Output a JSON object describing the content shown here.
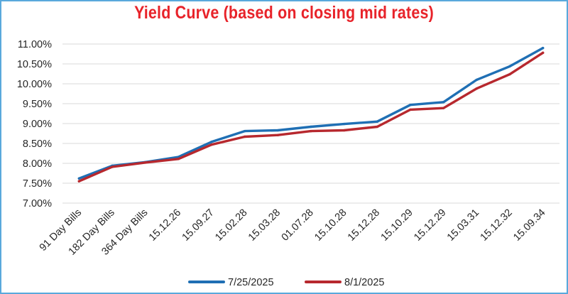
{
  "chart_data": {
    "type": "line",
    "title": "Yield Curve (based on closing mid rates)",
    "categories": [
      "91 Day Bills",
      "182 Day Bills",
      "364 Day Bills",
      "15.12.26",
      "15.09.27",
      "15.02.28",
      "15.03.28",
      "01.07.28",
      "15.10.28",
      "15.12.28",
      "15.10.29",
      "15.12.29",
      "15.03.31",
      "15.12.32",
      "15.09.34"
    ],
    "y_ticks": [
      "7.00%",
      "7.50%",
      "8.00%",
      "8.50%",
      "9.00%",
      "9.50%",
      "10.00%",
      "10.50%",
      "11.00%"
    ],
    "ylim": [
      7.0,
      11.0
    ],
    "grid": true,
    "legend_position": "bottom",
    "series": [
      {
        "name": "7/25/2025",
        "color": "#1f6fb4",
        "values": [
          7.62,
          7.94,
          8.03,
          8.16,
          8.54,
          8.81,
          8.83,
          8.92,
          8.99,
          9.05,
          9.47,
          9.54,
          10.1,
          10.44,
          10.9
        ]
      },
      {
        "name": "8/1/2025",
        "color": "#b7282e",
        "values": [
          7.55,
          7.91,
          8.02,
          8.11,
          8.47,
          8.67,
          8.71,
          8.81,
          8.83,
          8.92,
          9.35,
          9.39,
          9.88,
          10.24,
          10.78
        ]
      }
    ]
  }
}
